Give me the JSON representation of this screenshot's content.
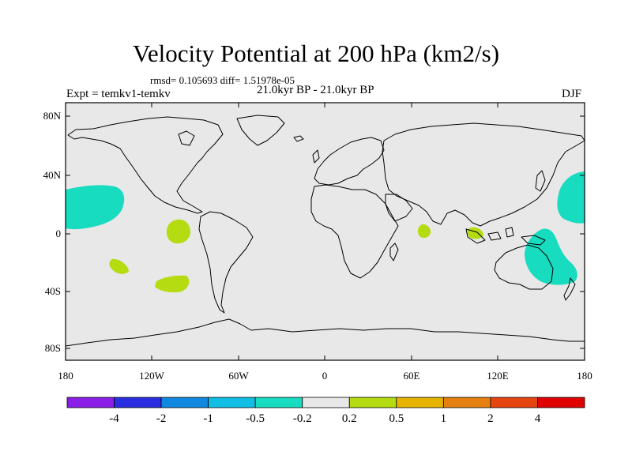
{
  "title": "Velocity Potential at 200 hPa (km2/s)",
  "stats_line": "rmsd= 0.105693 diff= 1.51978e-05",
  "experiment": "Expt = temkv1-temkv",
  "period": "21.0kyr BP - 21.0kyr BP",
  "season": "DJF",
  "lat_ticks": [
    "80N",
    "40N",
    "0",
    "40S",
    "80S"
  ],
  "lon_ticks": [
    "180",
    "120W",
    "60W",
    "0",
    "60E",
    "120E",
    "180"
  ],
  "colorbar": {
    "labels": [
      "-4",
      "-2",
      "-1",
      "-0.5",
      "-0.2",
      "0.2",
      "0.5",
      "1",
      "2",
      "4"
    ],
    "colors": [
      "#8a1ee6",
      "#2a2ee0",
      "#1188e0",
      "#10bee6",
      "#18dcc0",
      "#e8e8e8",
      "#b4dc10",
      "#e6b400",
      "#e68010",
      "#e64410",
      "#e00000"
    ]
  },
  "colors": {
    "land_background": "#e8e8e8",
    "positive_anomaly": "#b4dc10",
    "negative_anomaly": "#18dcc0"
  }
}
